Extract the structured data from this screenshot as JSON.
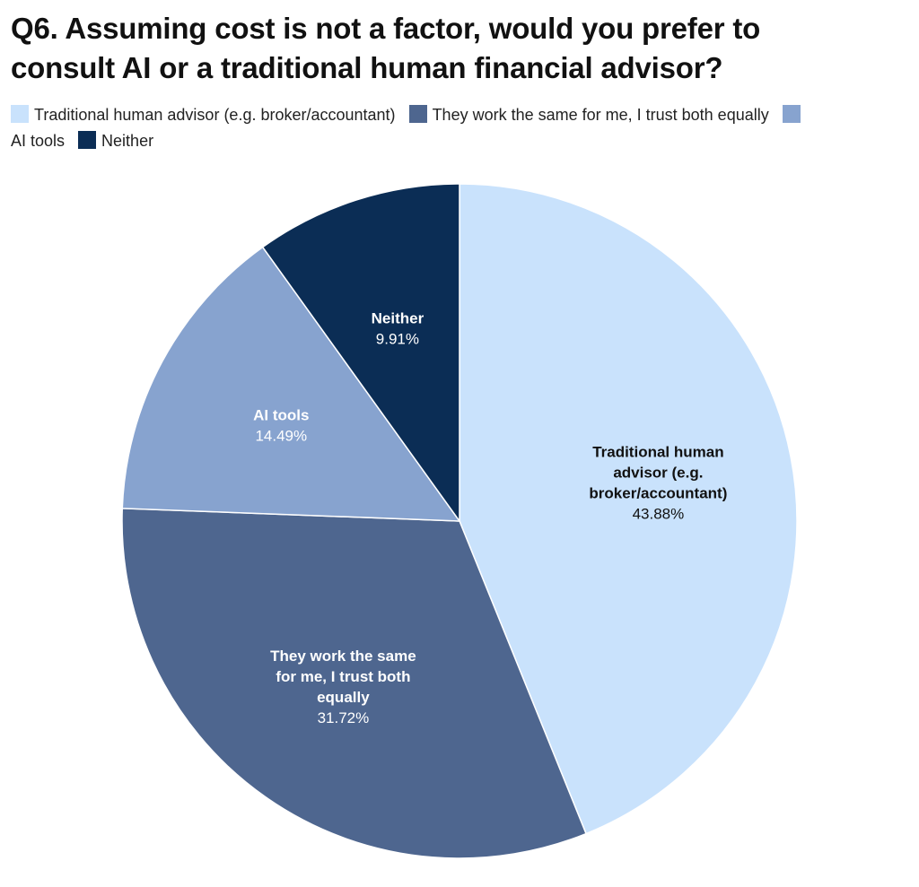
{
  "chart_data": {
    "type": "pie",
    "title": "Q6. Assuming cost is not a factor, would you prefer to\nconsult AI or a traditional human financial advisor?",
    "legend_position": "top",
    "slices": [
      {
        "name": "Traditional human advisor (e.g. broker/accountant)",
        "label_lines": [
          "Traditional human",
          "advisor (e.g.",
          "broker/accountant)"
        ],
        "value": 43.88,
        "value_label": "43.88%",
        "color": "#c9e2fc",
        "text_color": "#111111"
      },
      {
        "name": "They work the same for me, I trust both equally",
        "label_lines": [
          "They work the same",
          "for me, I trust both",
          "equally"
        ],
        "value": 31.72,
        "value_label": "31.72%",
        "color": "#4e668f",
        "text_color": "#ffffff"
      },
      {
        "name": "AI tools",
        "label_lines": [
          "AI tools"
        ],
        "value": 14.49,
        "value_label": "14.49%",
        "color": "#87a3cf",
        "text_color": "#ffffff"
      },
      {
        "name": "Neither",
        "label_lines": [
          "Neither"
        ],
        "value": 9.91,
        "value_label": "9.91%",
        "color": "#0b2d55",
        "text_color": "#ffffff"
      }
    ]
  }
}
